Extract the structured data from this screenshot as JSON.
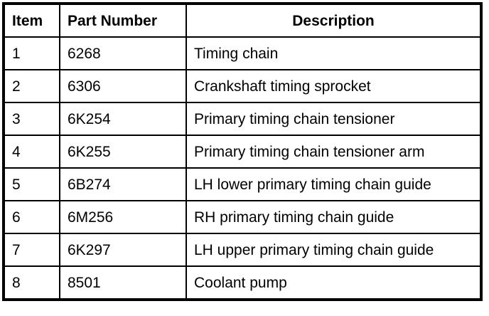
{
  "table": {
    "headers": {
      "item": "Item",
      "part_number": "Part Number",
      "description": "Description"
    },
    "rows": [
      {
        "item": "1",
        "part_number": "6268",
        "description": "Timing chain"
      },
      {
        "item": "2",
        "part_number": "6306",
        "description": "Crankshaft timing sprocket"
      },
      {
        "item": "3",
        "part_number": "6K254",
        "description": "Primary timing chain tensioner"
      },
      {
        "item": "4",
        "part_number": "6K255",
        "description": "Primary timing chain tensioner arm"
      },
      {
        "item": "5",
        "part_number": "6B274",
        "description": "LH lower primary timing chain guide"
      },
      {
        "item": "6",
        "part_number": "6M256",
        "description": "RH primary timing chain guide"
      },
      {
        "item": "7",
        "part_number": "6K297",
        "description": "LH upper primary timing chain guide"
      },
      {
        "item": "8",
        "part_number": "8501",
        "description": "Coolant pump"
      }
    ],
    "colors": {
      "border": "#000000",
      "text": "#000000",
      "background": "#ffffff"
    }
  }
}
